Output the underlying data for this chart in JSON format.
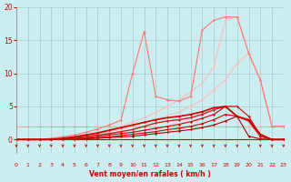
{
  "background_color": "#cceef0",
  "grid_color": "#aacccc",
  "xlabel": "Vent moyen/en rafales ( km/h )",
  "xlabel_color": "#cc0000",
  "tick_color": "#cc0000",
  "arrow_color": "#cc0000",
  "x_min": 0,
  "x_max": 23,
  "y_min": 0,
  "y_max": 20,
  "x_ticks": [
    0,
    1,
    2,
    3,
    4,
    5,
    6,
    7,
    8,
    9,
    10,
    11,
    12,
    13,
    14,
    15,
    16,
    17,
    18,
    19,
    20,
    21,
    22,
    23
  ],
  "y_ticks": [
    0,
    5,
    10,
    15,
    20
  ],
  "lines": [
    {
      "y": [
        2,
        2,
        2,
        2,
        2,
        2,
        2,
        2,
        2,
        2,
        2,
        2,
        2,
        2,
        2,
        2,
        2,
        2,
        2,
        2,
        2,
        2,
        2,
        2
      ],
      "color": "#ffaaaa",
      "lw": 0.8
    },
    {
      "y": [
        0,
        0,
        0,
        0.1,
        0.2,
        0.4,
        0.6,
        0.9,
        1.2,
        1.6,
        2.0,
        2.5,
        3.0,
        3.6,
        4.2,
        5.0,
        6.0,
        7.5,
        9.0,
        11.5,
        13.0,
        9.0,
        2.0,
        2.0
      ],
      "color": "#ffbbbb",
      "lw": 0.8
    },
    {
      "y": [
        0,
        0,
        0,
        0.1,
        0.3,
        0.5,
        0.8,
        1.1,
        1.5,
        2.0,
        2.6,
        3.3,
        4.1,
        5.0,
        6.0,
        7.2,
        8.5,
        11.0,
        18.0,
        18.5,
        13.0,
        9.0,
        2.0,
        2.0
      ],
      "color": "#ffbbbb",
      "lw": 0.8
    },
    {
      "y": [
        0,
        0,
        0,
        0.2,
        0.4,
        0.7,
        1.1,
        1.6,
        2.2,
        2.9,
        10.0,
        16.3,
        6.5,
        6.0,
        5.8,
        6.5,
        16.5,
        18.0,
        18.5,
        18.5,
        13.0,
        9.0,
        2.0,
        2.0
      ],
      "color": "#ff7777",
      "lw": 0.8
    },
    {
      "y": [
        0,
        0,
        0,
        0,
        0,
        0,
        0.1,
        0.2,
        0.3,
        0.4,
        0.5,
        0.7,
        0.9,
        1.1,
        1.3,
        1.5,
        1.8,
        2.2,
        2.8,
        3.5,
        0.5,
        0.1,
        0,
        0
      ],
      "color": "#aa0000",
      "lw": 0.8
    },
    {
      "y": [
        0,
        0,
        0,
        0,
        0,
        0.1,
        0.2,
        0.3,
        0.4,
        0.6,
        0.8,
        1.0,
        1.2,
        1.5,
        1.7,
        2.0,
        2.4,
        3.0,
        3.8,
        3.5,
        2.8,
        0.5,
        0.0,
        0
      ],
      "color": "#cc0000",
      "lw": 0.8
    },
    {
      "y": [
        0,
        0,
        0,
        0,
        0.1,
        0.2,
        0.3,
        0.5,
        0.7,
        0.9,
        1.1,
        1.4,
        1.7,
        2.0,
        2.3,
        2.7,
        3.2,
        3.8,
        5.0,
        5.0,
        3.5,
        0.6,
        0.0,
        0
      ],
      "color": "#cc0000",
      "lw": 0.8
    },
    {
      "y": [
        0,
        0,
        0,
        0,
        0.1,
        0.3,
        0.5,
        0.7,
        0.9,
        1.2,
        1.5,
        2.0,
        2.5,
        2.8,
        3.0,
        3.3,
        3.8,
        4.5,
        5.0,
        3.5,
        2.8,
        0.5,
        0.0,
        0
      ],
      "color": "#cc2222",
      "lw": 1.0
    },
    {
      "y": [
        0,
        0,
        0,
        0,
        0.2,
        0.4,
        0.7,
        1.0,
        1.4,
        1.8,
        2.2,
        2.6,
        3.0,
        3.3,
        3.5,
        3.8,
        4.2,
        4.8,
        5.0,
        3.5,
        3.0,
        0.8,
        0.0,
        0
      ],
      "color": "#cc0000",
      "lw": 1.2
    }
  ]
}
